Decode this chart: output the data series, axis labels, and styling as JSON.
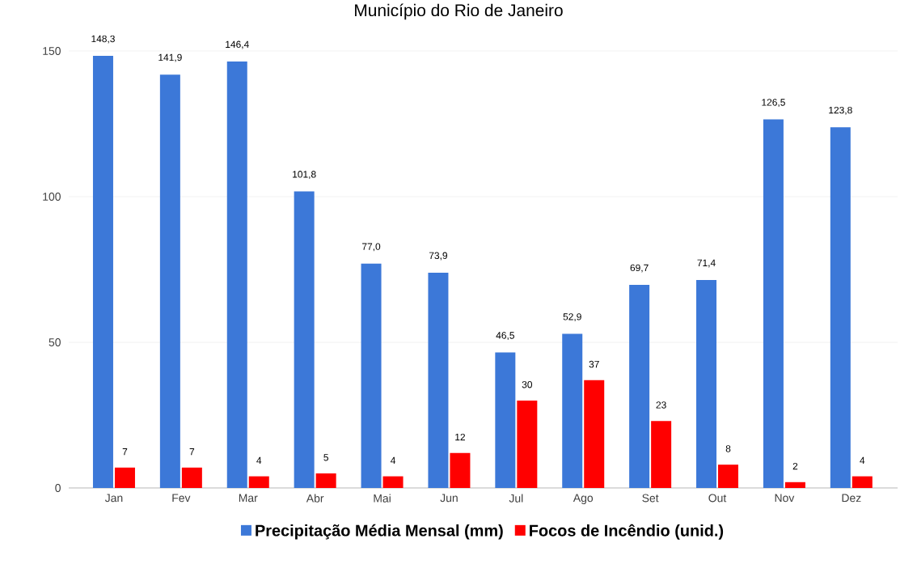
{
  "chart_data": {
    "type": "bar",
    "title": "Município do Rio de Janeiro",
    "categories": [
      "Jan",
      "Fev",
      "Mar",
      "Abr",
      "Mai",
      "Jun",
      "Jul",
      "Ago",
      "Set",
      "Out",
      "Nov",
      "Dez"
    ],
    "series": [
      {
        "name": "Precipitação Média Mensal (mm)",
        "color": "#3c78d8",
        "values": [
          148.3,
          141.9,
          146.4,
          101.8,
          77.0,
          73.9,
          46.5,
          52.9,
          69.7,
          71.4,
          126.5,
          123.8
        ],
        "value_labels": [
          "148,3",
          "141,9",
          "146,4",
          "101,8",
          "77,0",
          "73,9",
          "46,5",
          "52,9",
          "69,7",
          "71,4",
          "126,5",
          "123,8"
        ]
      },
      {
        "name": "Focos de Incêndio (unid.)",
        "color": "#ff0000",
        "values": [
          7,
          7,
          4,
          5,
          4,
          12,
          30,
          37,
          23,
          8,
          2,
          4
        ],
        "value_labels": [
          "7",
          "7",
          "4",
          "5",
          "4",
          "12",
          "30",
          "37",
          "23",
          "8",
          "2",
          "4"
        ]
      }
    ],
    "ylim": [
      0,
      150
    ],
    "yticks": [
      0,
      50,
      100,
      150
    ],
    "grid": "y",
    "legend": "bottom"
  }
}
